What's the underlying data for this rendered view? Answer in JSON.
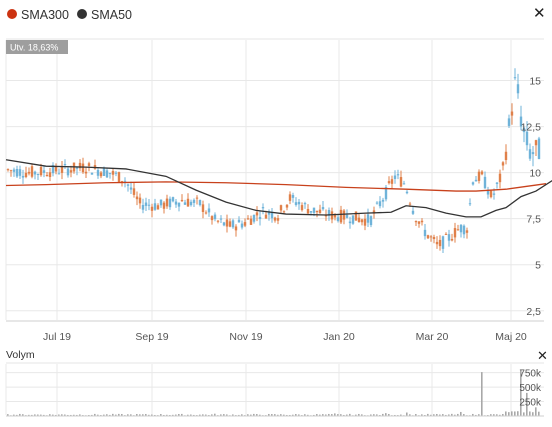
{
  "legend": [
    {
      "label": "SMA300",
      "color": "#cc3311"
    },
    {
      "label": "SMA50",
      "color": "#333333"
    }
  ],
  "badge": "Utv. 18,63%",
  "volume_label": "Volym",
  "close_icon": "close-icon",
  "colors": {
    "up": "#e0804a",
    "down": "#6fb3d9",
    "sma300": "#c8411c",
    "sma50": "#333333",
    "grid": "#e8e8e8"
  },
  "chart_data": [
    {
      "type": "candlestick",
      "title": "",
      "x_tick_labels": [
        "Jul 19",
        "Sep 19",
        "Nov 19",
        "Jan 20",
        "Mar 20",
        "Maj 20"
      ],
      "y_tick_labels": [
        "2,5",
        "5",
        "7,5",
        "10",
        "12,5",
        "15"
      ],
      "y_ticks": [
        2.5,
        5,
        7.5,
        10,
        12.5,
        15
      ],
      "ylim": [
        2,
        17.2
      ],
      "grid": true,
      "legend_position": "top-left",
      "series": [
        {
          "name": "SMA300",
          "points": [
            [
              0,
              9.3
            ],
            [
              40,
              9.35
            ],
            [
              100,
              9.45
            ],
            [
              160,
              9.5
            ],
            [
              220,
              9.45
            ],
            [
              280,
              9.35
            ],
            [
              340,
              9.2
            ],
            [
              400,
              9.1
            ],
            [
              450,
              9.0
            ],
            [
              470,
              9.0
            ],
            [
              500,
              9.1
            ],
            [
              520,
              9.25
            ],
            [
              540,
              9.4
            ]
          ]
        },
        {
          "name": "SMA50",
          "points": [
            [
              0,
              10.7
            ],
            [
              40,
              10.35
            ],
            [
              80,
              10.3
            ],
            [
              120,
              10.2
            ],
            [
              160,
              9.8
            ],
            [
              190,
              9.05
            ],
            [
              220,
              8.4
            ],
            [
              250,
              7.95
            ],
            [
              280,
              7.75
            ],
            [
              320,
              7.7
            ],
            [
              360,
              7.8
            ],
            [
              385,
              7.85
            ],
            [
              400,
              8.2
            ],
            [
              420,
              8.1
            ],
            [
              440,
              7.8
            ],
            [
              460,
              7.6
            ],
            [
              475,
              7.6
            ],
            [
              490,
              7.95
            ],
            [
              500,
              8.1
            ],
            [
              515,
              8.7
            ],
            [
              530,
              9.0
            ],
            [
              550,
              9.7
            ]
          ]
        }
      ],
      "price_keypoints": [
        [
          0,
          10.2
        ],
        [
          30,
          10.0
        ],
        [
          55,
          10.1
        ],
        [
          85,
          10.3
        ],
        [
          110,
          10.0
        ],
        [
          125,
          9.6
        ],
        [
          140,
          8.3
        ],
        [
          160,
          8.2
        ],
        [
          180,
          8.5
        ],
        [
          200,
          8.3
        ],
        [
          215,
          7.4
        ],
        [
          230,
          7.1
        ],
        [
          245,
          7.3
        ],
        [
          262,
          7.9
        ],
        [
          278,
          7.7
        ],
        [
          290,
          8.6
        ],
        [
          310,
          8.0
        ],
        [
          330,
          7.7
        ],
        [
          350,
          7.6
        ],
        [
          370,
          7.4
        ],
        [
          383,
          8.6
        ],
        [
          395,
          9.8
        ],
        [
          405,
          9.4
        ],
        [
          415,
          7.7
        ],
        [
          425,
          6.8
        ],
        [
          438,
          6.0
        ],
        [
          450,
          6.5
        ],
        [
          460,
          7.0
        ],
        [
          468,
          7.0
        ],
        [
          472,
          9.6
        ],
        [
          482,
          9.8
        ],
        [
          492,
          8.6
        ],
        [
          502,
          9.9
        ],
        [
          510,
          12.8
        ],
        [
          516,
          15.2
        ],
        [
          522,
          12.5
        ],
        [
          530,
          11.1
        ],
        [
          540,
          11.2
        ],
        [
          550,
          11.3
        ]
      ]
    },
    {
      "type": "bar",
      "title": "Volym",
      "y_tick_labels": [
        "250k",
        "500k",
        "750k"
      ],
      "y_ticks": [
        250000,
        500000,
        750000
      ],
      "ylim": [
        0,
        900000
      ],
      "volume_spikes": [
        [
          475,
          760000
        ],
        [
          515,
          800000
        ],
        [
          520,
          400000
        ],
        [
          530,
          150000
        ],
        [
          545,
          180000
        ],
        [
          210,
          40000
        ],
        [
          330,
          45000
        ],
        [
          380,
          50000
        ],
        [
          400,
          60000
        ],
        [
          455,
          70000
        ]
      ]
    }
  ]
}
